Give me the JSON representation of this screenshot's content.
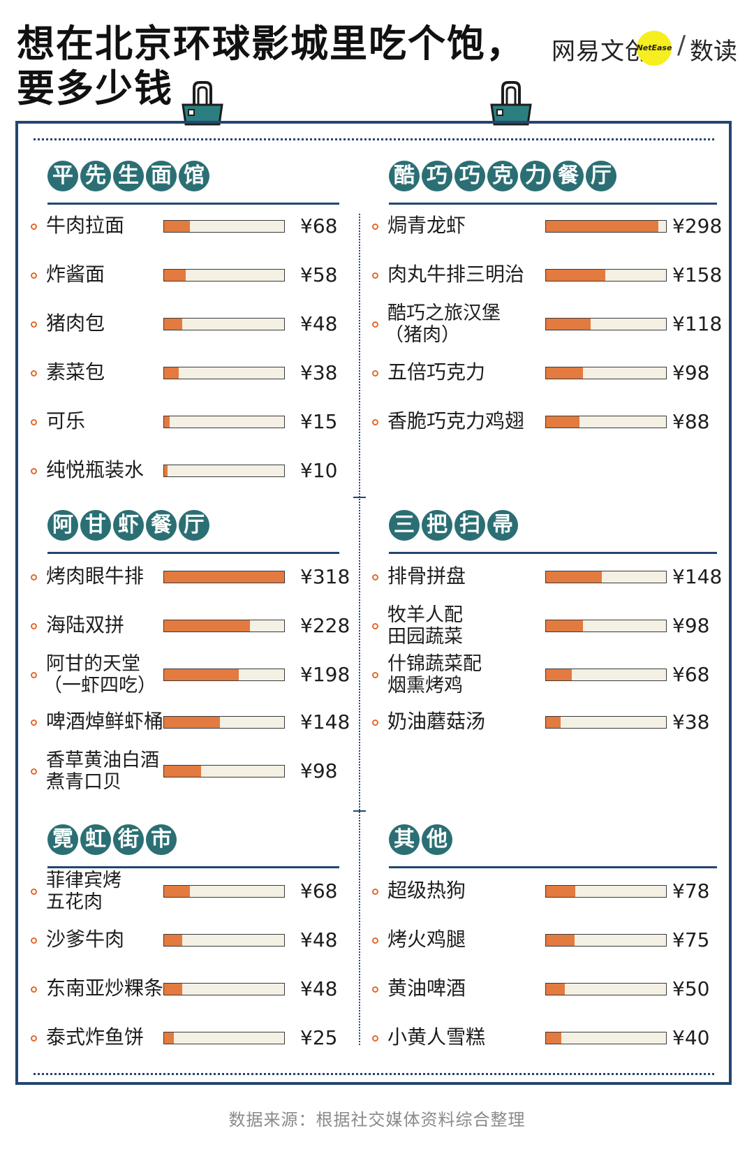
{
  "header": {
    "title_line1": "想在北京环球影城里吃个饱，",
    "title_line2": "要多少钱",
    "brand_left": "网易文创",
    "brand_badge": "NetEase",
    "brand_slash": "/",
    "brand_right": "数读"
  },
  "colors": {
    "frame": "#23466f",
    "chip": "#2b6f74",
    "bar_fill": "#e37a3f",
    "bar_track": "#f4f0e4",
    "bullet": "#e06a2e"
  },
  "chart_data": {
    "type": "bar",
    "orientation": "horizontal",
    "currency": "¥",
    "max_value": 318,
    "sections": [
      {
        "title_chars": [
          "平",
          "先",
          "生",
          "面",
          "馆"
        ],
        "items": [
          {
            "name": [
              "牛肉拉面"
            ],
            "value": 68,
            "label": "¥68"
          },
          {
            "name": [
              "炸酱面"
            ],
            "value": 58,
            "label": "¥58"
          },
          {
            "name": [
              "猪肉包"
            ],
            "value": 48,
            "label": "¥48"
          },
          {
            "name": [
              "素菜包"
            ],
            "value": 38,
            "label": "¥38"
          },
          {
            "name": [
              "可乐"
            ],
            "value": 15,
            "label": "¥15"
          },
          {
            "name": [
              "纯悦瓶装水"
            ],
            "value": 10,
            "label": "¥10"
          }
        ]
      },
      {
        "title_chars": [
          "酷",
          "巧",
          "巧",
          "克",
          "力",
          "餐",
          "厅"
        ],
        "items": [
          {
            "name": [
              "焗青龙虾"
            ],
            "value": 298,
            "label": "¥298"
          },
          {
            "name": [
              "肉丸牛排三明治"
            ],
            "value": 158,
            "label": "¥158"
          },
          {
            "name": [
              "酷巧之旅汉堡",
              "（猪肉）"
            ],
            "value": 118,
            "label": "¥118"
          },
          {
            "name": [
              "五倍巧克力"
            ],
            "value": 98,
            "label": "¥98"
          },
          {
            "name": [
              "香脆巧克力鸡翅"
            ],
            "value": 88,
            "label": "¥88"
          }
        ]
      },
      {
        "title_chars": [
          "阿",
          "甘",
          "虾",
          "餐",
          "厅"
        ],
        "items": [
          {
            "name": [
              "烤肉眼牛排"
            ],
            "value": 318,
            "label": "¥318"
          },
          {
            "name": [
              "海陆双拼"
            ],
            "value": 228,
            "label": "¥228"
          },
          {
            "name": [
              "阿甘的天堂",
              "（一虾四吃）"
            ],
            "value": 198,
            "label": "¥198"
          },
          {
            "name": [
              "啤酒焯鲜虾桶"
            ],
            "value": 148,
            "label": "¥148"
          },
          {
            "name": [
              "香草黄油白酒",
              "煮青口贝"
            ],
            "value": 98,
            "label": "¥98"
          }
        ]
      },
      {
        "title_chars": [
          "三",
          "把",
          "扫",
          "帚"
        ],
        "items": [
          {
            "name": [
              "排骨拼盘"
            ],
            "value": 148,
            "label": "¥148"
          },
          {
            "name": [
              "牧羊人配",
              "田园蔬菜"
            ],
            "value": 98,
            "label": "¥98"
          },
          {
            "name": [
              "什锦蔬菜配",
              "烟熏烤鸡"
            ],
            "value": 68,
            "label": "¥68"
          },
          {
            "name": [
              "奶油蘑菇汤"
            ],
            "value": 38,
            "label": "¥38"
          }
        ]
      },
      {
        "title_chars": [
          "霓",
          "虹",
          "街",
          "市"
        ],
        "items": [
          {
            "name": [
              "菲律宾烤",
              "五花肉"
            ],
            "value": 68,
            "label": "¥68"
          },
          {
            "name": [
              "沙爹牛肉"
            ],
            "value": 48,
            "label": "¥48"
          },
          {
            "name": [
              "东南亚炒粿条"
            ],
            "value": 48,
            "label": "¥48"
          },
          {
            "name": [
              "泰式炸鱼饼"
            ],
            "value": 25,
            "label": "¥25"
          }
        ]
      },
      {
        "title_chars": [
          "其",
          "他"
        ],
        "items": [
          {
            "name": [
              "超级热狗"
            ],
            "value": 78,
            "label": "¥78"
          },
          {
            "name": [
              "烤火鸡腿"
            ],
            "value": 75,
            "label": "¥75"
          },
          {
            "name": [
              "黄油啤酒"
            ],
            "value": 50,
            "label": "¥50"
          },
          {
            "name": [
              "小黄人雪糕"
            ],
            "value": 40,
            "label": "¥40"
          }
        ]
      }
    ]
  },
  "footer": {
    "source": "数据来源：根据社交媒体资料综合整理"
  }
}
